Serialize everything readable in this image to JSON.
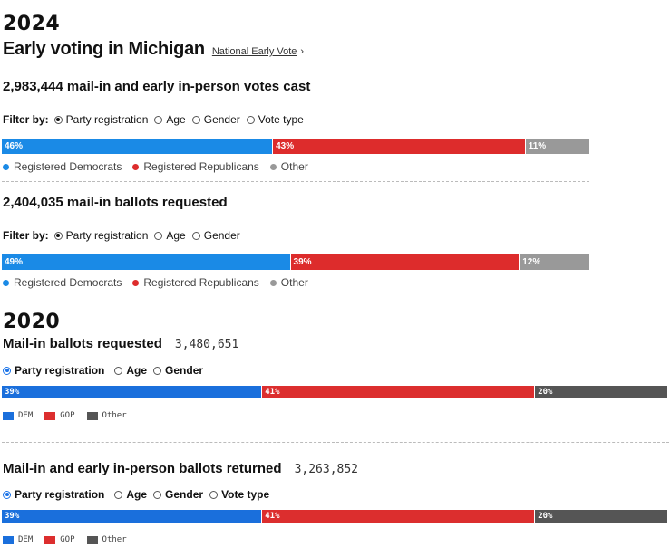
{
  "colors": {
    "dem": "#1a8ae6",
    "gop": "#dd2c2c",
    "other": "#999999",
    "dem2020": "#1a6fdc",
    "gop2020": "#dc2e2e",
    "other2020": "#555555"
  },
  "y2024": {
    "year": "2024",
    "title": "Early voting in Michigan",
    "link": {
      "label": "National Early Vote",
      "chevron": "›"
    },
    "cast": {
      "count": "2,983,444",
      "label": "mail-in and early in-person votes cast",
      "filter_label": "Filter by:",
      "options": [
        "Party registration",
        "Age",
        "Gender",
        "Vote type"
      ],
      "selected": "Party registration",
      "bar": [
        {
          "label": "46%",
          "value": 46
        },
        {
          "label": "43%",
          "value": 43
        },
        {
          "label": "11%",
          "value": 11
        }
      ],
      "legend": [
        "Registered Democrats",
        "Registered Republicans",
        "Other"
      ]
    },
    "requested": {
      "count": "2,404,035",
      "label": "mail-in ballots requested",
      "filter_label": "Filter by:",
      "options": [
        "Party registration",
        "Age",
        "Gender"
      ],
      "selected": "Party registration",
      "bar": [
        {
          "label": "49%",
          "value": 49
        },
        {
          "label": "39%",
          "value": 39
        },
        {
          "label": "12%",
          "value": 12
        }
      ],
      "legend": [
        "Registered Democrats",
        "Registered Republicans",
        "Other"
      ]
    }
  },
  "y2020": {
    "year": "2020",
    "requested": {
      "title": "Mail-in ballots requested",
      "count": "3,480,651",
      "options": [
        "Party registration",
        "Age",
        "Gender"
      ],
      "selected": "Party registration",
      "bar": [
        {
          "label": "39%",
          "value": 39
        },
        {
          "label": "41%",
          "value": 41
        },
        {
          "label": "20%",
          "value": 20
        }
      ],
      "legend": [
        "DEM",
        "GOP",
        "Other"
      ]
    },
    "returned": {
      "title": "Mail-in and early in-person ballots returned",
      "count": "3,263,852",
      "options": [
        "Party registration",
        "Age",
        "Gender",
        "Vote type"
      ],
      "selected": "Party registration",
      "bar": [
        {
          "label": "39%",
          "value": 39
        },
        {
          "label": "41%",
          "value": 41
        },
        {
          "label": "20%",
          "value": 20
        }
      ],
      "legend": [
        "DEM",
        "GOP",
        "Other"
      ]
    }
  }
}
